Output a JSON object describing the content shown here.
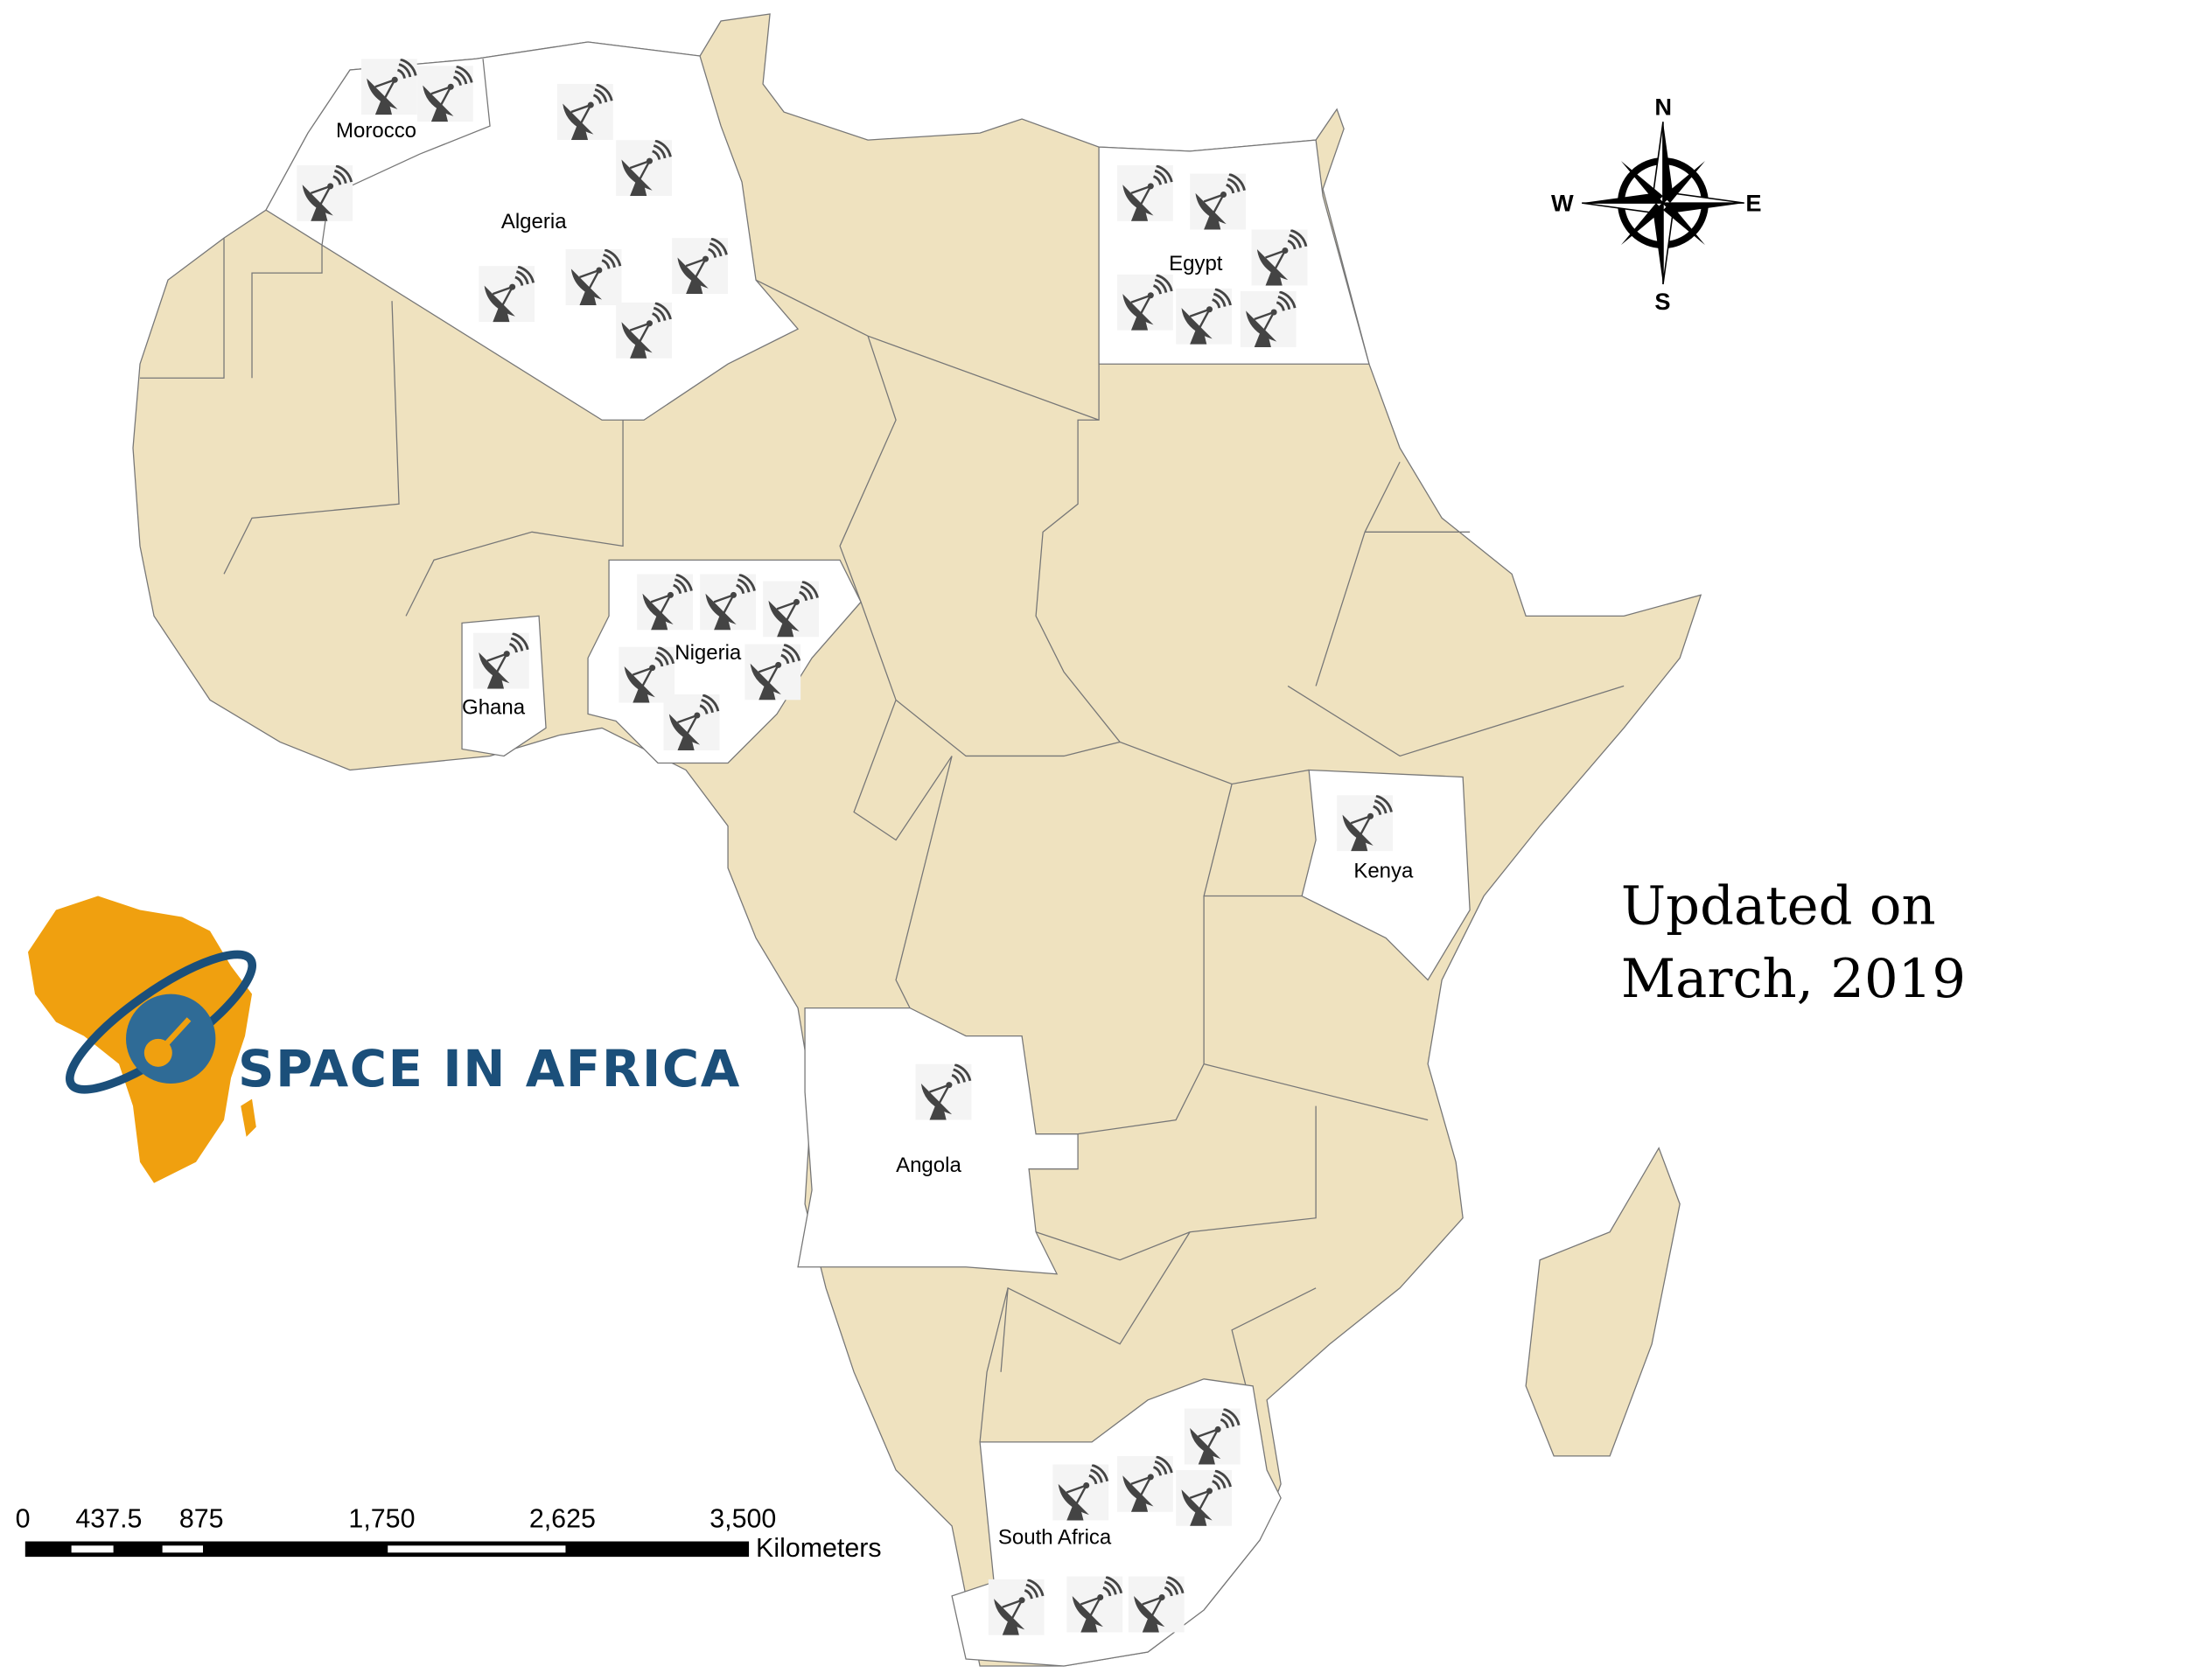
{
  "map": {
    "land_color": "#efe2bf",
    "highlight_color": "#ffffff",
    "icon": "satellite-dish-icon",
    "countries": [
      {
        "name": "Morocco",
        "dishes": 3
      },
      {
        "name": "Algeria",
        "dishes": 6
      },
      {
        "name": "Egypt",
        "dishes": 6
      },
      {
        "name": "Nigeria",
        "dishes": 6
      },
      {
        "name": "Ghana",
        "dishes": 1
      },
      {
        "name": "Kenya",
        "dishes": 1
      },
      {
        "name": "Angola",
        "dishes": 1
      },
      {
        "name": "South Africa",
        "dishes": 7
      }
    ]
  },
  "compass": {
    "n": "N",
    "s": "S",
    "e": "E",
    "w": "W"
  },
  "updated": {
    "line1": "Updated on",
    "line2": "March, 2019"
  },
  "scale_bar": {
    "labels": [
      "0",
      "437.5",
      "875",
      "1,750",
      "2,625",
      "3,500"
    ],
    "unit": "Kilometers"
  },
  "logo": {
    "text": "SPACE IN AFRICA",
    "orange": "#f0a00f",
    "blue": "#1b4f7a"
  }
}
